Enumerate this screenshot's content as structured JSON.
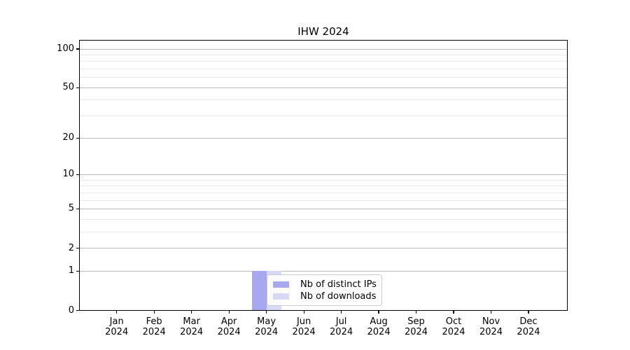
{
  "chart_data": {
    "type": "bar",
    "title": "IHW 2024",
    "x_categories": [
      "Jan 2024",
      "Feb 2024",
      "Mar 2024",
      "Apr 2024",
      "May 2024",
      "Jun 2024",
      "Jul 2024",
      "Aug 2024",
      "Sep 2024",
      "Oct 2024",
      "Nov 2024",
      "Dec 2024"
    ],
    "series": [
      {
        "name": "Nb of distinct IPs",
        "color": "#a8a8ef",
        "values": [
          0,
          0,
          0,
          0,
          1,
          0,
          0,
          0,
          0,
          0,
          0,
          0
        ]
      },
      {
        "name": "Nb of downloads",
        "color": "#d8d8f7",
        "values": [
          0,
          0,
          0,
          0,
          1,
          0,
          0,
          0,
          0,
          0,
          0,
          0
        ]
      }
    ],
    "y_axis": {
      "scale": "log1p",
      "range": [
        0,
        100
      ],
      "major_ticks": [
        0,
        1,
        2,
        5,
        10,
        20,
        50,
        100
      ],
      "minor_ticks": [
        3,
        4,
        6,
        7,
        8,
        9,
        30,
        40,
        60,
        70,
        80,
        90
      ]
    },
    "grid": {
      "major_color": "#bdbdbd",
      "minor_color": "#eaeaea"
    },
    "legend": {
      "position": "inside-lower-center",
      "entries": [
        "Nb of distinct IPs",
        "Nb of downloads"
      ]
    },
    "frame_color": "#000000",
    "background_color": "#ffffff"
  }
}
